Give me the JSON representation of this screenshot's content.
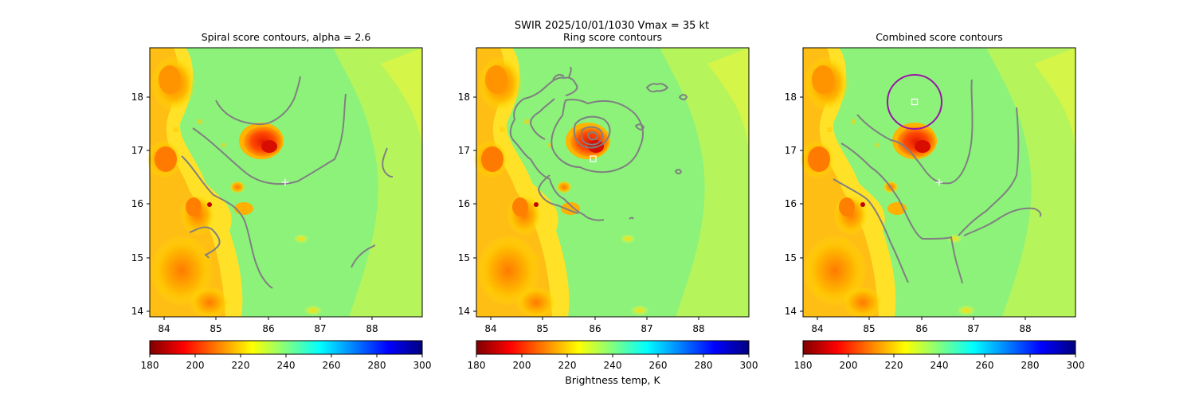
{
  "suptitle": "SWIR  2025/10/01/1030    Vmax = 35 kt",
  "colormap": {
    "name": "jet_r",
    "stops": [
      "#7f0000",
      "#ff0000",
      "#ff8000",
      "#ffff00",
      "#80ff80",
      "#00ffff",
      "#0080ff",
      "#0000ff",
      "#00007f"
    ]
  },
  "chart_data": [
    {
      "type": "heatmap",
      "title": "Spiral score contours, alpha =  2.6",
      "xlim": [
        83.7,
        89.0
      ],
      "ylim": [
        13.9,
        18.9
      ],
      "xticks": [
        "84",
        "85",
        "86",
        "87",
        "88"
      ],
      "yticks": [
        "14",
        "15",
        "16",
        "17",
        "18"
      ],
      "overlay": "spiral",
      "marker_plus": [
        86.33,
        16.42
      ],
      "colorbar": {
        "label": "",
        "min": 180,
        "max": 300,
        "ticks": [
          "180",
          "200",
          "220",
          "240",
          "260",
          "280",
          "300"
        ]
      }
    },
    {
      "type": "heatmap",
      "title": "Ring score contours",
      "xlim": [
        83.7,
        89.0
      ],
      "ylim": [
        13.9,
        18.9
      ],
      "xticks": [
        "84",
        "85",
        "86",
        "87",
        "88"
      ],
      "yticks": [
        "14",
        "15",
        "16",
        "17",
        "18"
      ],
      "overlay": "ring",
      "marker_square": [
        85.98,
        16.83
      ],
      "colorbar": {
        "label": "Brightness temp, K",
        "min": 180,
        "max": 300,
        "ticks": [
          "180",
          "200",
          "220",
          "240",
          "260",
          "280",
          "300"
        ]
      }
    },
    {
      "type": "heatmap",
      "title": "Combined score contours",
      "xlim": [
        83.7,
        89.0
      ],
      "ylim": [
        13.9,
        18.9
      ],
      "xticks": [
        "84",
        "85",
        "86",
        "87",
        "88"
      ],
      "yticks": [
        "14",
        "15",
        "16",
        "17",
        "18"
      ],
      "overlay": "combined",
      "marker_plus": [
        86.33,
        16.42
      ],
      "marker_square": [
        85.85,
        17.9
      ],
      "circle": {
        "cx": 85.85,
        "cy": 17.9,
        "r": 0.5,
        "color": "#9a14a8"
      },
      "colorbar": {
        "label": "",
        "min": 180,
        "max": 300,
        "ticks": [
          "180",
          "200",
          "220",
          "240",
          "260",
          "280",
          "300"
        ]
      }
    }
  ]
}
